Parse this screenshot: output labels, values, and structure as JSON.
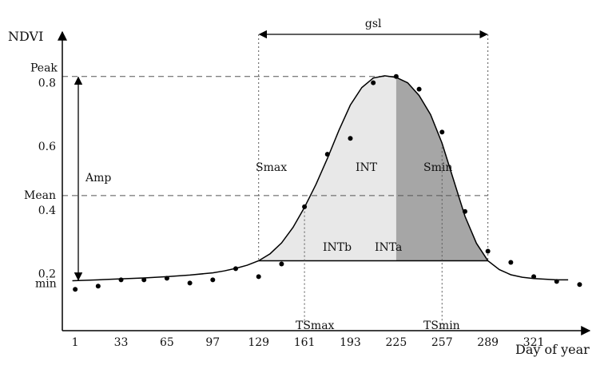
{
  "chart_data": {
    "type": "line",
    "xlabel": "Day of year",
    "ylabel": "NDVI",
    "x_ticks": [
      1,
      33,
      65,
      97,
      129,
      161,
      193,
      225,
      257,
      289,
      321
    ],
    "y_ticks": [
      0.2,
      0.4,
      0.6,
      0.8
    ],
    "xlim": [
      -8,
      360
    ],
    "ylim": [
      0.02,
      0.96
    ],
    "series": [
      {
        "kind": "points",
        "x": [
          1,
          17,
          33,
          49,
          65,
          81,
          97,
          113,
          129,
          145,
          161,
          177,
          193,
          209,
          225,
          241,
          257,
          273,
          289,
          305,
          321,
          337,
          353
        ],
        "y": [
          0.15,
          0.16,
          0.18,
          0.18,
          0.185,
          0.17,
          0.18,
          0.215,
          0.19,
          0.23,
          0.41,
          0.575,
          0.625,
          0.8,
          0.82,
          0.78,
          0.645,
          0.395,
          0.27,
          0.235,
          0.19,
          0.175,
          0.165
        ]
      },
      {
        "kind": "curve",
        "x": [
          -1,
          17,
          33,
          49,
          65,
          81,
          97,
          105,
          113,
          121,
          129,
          137,
          145,
          153,
          161,
          169,
          177,
          185,
          193,
          201,
          209,
          217,
          225,
          233,
          241,
          249,
          257,
          265,
          273,
          281,
          289,
          297,
          305,
          313,
          321,
          337,
          345
        ],
        "y": [
          0.177,
          0.18,
          0.183,
          0.186,
          0.19,
          0.195,
          0.202,
          0.208,
          0.216,
          0.226,
          0.24,
          0.262,
          0.296,
          0.345,
          0.408,
          0.48,
          0.562,
          0.65,
          0.73,
          0.785,
          0.815,
          0.822,
          0.817,
          0.8,
          0.76,
          0.7,
          0.61,
          0.495,
          0.38,
          0.295,
          0.24,
          0.212,
          0.196,
          0.188,
          0.184,
          0.18,
          0.18
        ]
      }
    ],
    "peak_value": 0.82,
    "mean_value": 0.445,
    "min_value": 0.177,
    "base_value": 0.24,
    "season_start": 129,
    "season_end": 289,
    "peak_day": 225,
    "ts_max_day": 161,
    "ts_min_day": 257,
    "labels": {
      "peak": "Peak",
      "mean": "Mean",
      "min": "min",
      "amp": "Amp",
      "gsl": "gsl",
      "smax": "Smax",
      "smin": "Smin",
      "int": "INT",
      "intb": "INTb",
      "inta": "INTa",
      "tsmax": "TSmax",
      "tsmin": "TSmin"
    },
    "colors": {
      "intb_fill": "#e8e8e8",
      "inta_fill": "#a6a6a6",
      "line": "#000000"
    },
    "grid": false
  }
}
